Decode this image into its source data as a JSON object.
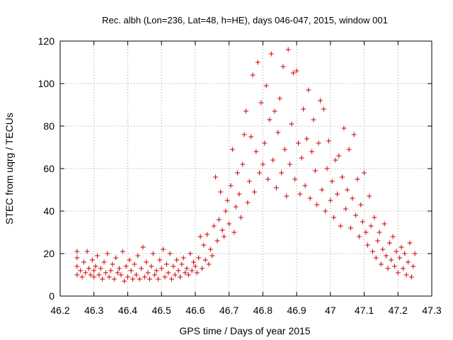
{
  "chart_data": {
    "type": "scatter",
    "title": "Rec. albh (Lon=236, Lat=48, h=HE), days 046-047, 2015, window 001",
    "xlabel": "GPS time / Days of year 2015",
    "ylabel": "STEC from uqrg / TECUs",
    "xlim": [
      46.2,
      47.3
    ],
    "ylim": [
      0,
      120
    ],
    "x_ticks": [
      "46.2",
      "46.3",
      "46.4",
      "46.5",
      "46.6",
      "46.7",
      "46.8",
      "46.9",
      "47",
      "47.1",
      "47.2",
      "47.3"
    ],
    "y_ticks": [
      "0",
      "20",
      "40",
      "60",
      "80",
      "100",
      "120"
    ],
    "grid": true,
    "marker": "plus",
    "color": "#cc0000",
    "points": [
      [
        46.25,
        10
      ],
      [
        46.25,
        14
      ],
      [
        46.25,
        18
      ],
      [
        46.25,
        21
      ],
      [
        46.26,
        12
      ],
      [
        46.265,
        9
      ],
      [
        46.27,
        16
      ],
      [
        46.275,
        11
      ],
      [
        46.28,
        21
      ],
      [
        46.285,
        13
      ],
      [
        46.29,
        10
      ],
      [
        46.295,
        17
      ],
      [
        46.3,
        12
      ],
      [
        46.3,
        9
      ],
      [
        46.305,
        14
      ],
      [
        46.31,
        19
      ],
      [
        46.315,
        10
      ],
      [
        46.32,
        13
      ],
      [
        46.325,
        8
      ],
      [
        46.33,
        16
      ],
      [
        46.335,
        11
      ],
      [
        46.34,
        20
      ],
      [
        46.345,
        9
      ],
      [
        46.35,
        12
      ],
      [
        46.355,
        15
      ],
      [
        46.36,
        8
      ],
      [
        46.365,
        18
      ],
      [
        46.37,
        11
      ],
      [
        46.375,
        13
      ],
      [
        46.38,
        10
      ],
      [
        46.385,
        21
      ],
      [
        46.39,
        7
      ],
      [
        46.395,
        14
      ],
      [
        46.4,
        9
      ],
      [
        46.405,
        17
      ],
      [
        46.41,
        12
      ],
      [
        46.415,
        8
      ],
      [
        46.42,
        15
      ],
      [
        46.425,
        10
      ],
      [
        46.43,
        19
      ],
      [
        46.435,
        8
      ],
      [
        46.44,
        13
      ],
      [
        46.445,
        23
      ],
      [
        46.45,
        9
      ],
      [
        46.455,
        16
      ],
      [
        46.46,
        11
      ],
      [
        46.465,
        8
      ],
      [
        46.47,
        14
      ],
      [
        46.475,
        20
      ],
      [
        46.48,
        10
      ],
      [
        46.485,
        12
      ],
      [
        46.49,
        8
      ],
      [
        46.495,
        17
      ],
      [
        46.5,
        13
      ],
      [
        46.505,
        22
      ],
      [
        46.51,
        9
      ],
      [
        46.515,
        15
      ],
      [
        46.52,
        11
      ],
      [
        46.525,
        20
      ],
      [
        46.53,
        8
      ],
      [
        46.535,
        14
      ],
      [
        46.54,
        10
      ],
      [
        46.545,
        17
      ],
      [
        46.55,
        12
      ],
      [
        46.555,
        9
      ],
      [
        46.56,
        15
      ],
      [
        46.565,
        18
      ],
      [
        46.57,
        11
      ],
      [
        46.575,
        13
      ],
      [
        46.58,
        10
      ],
      [
        46.585,
        20
      ],
      [
        46.59,
        12
      ],
      [
        46.595,
        16
      ],
      [
        46.6,
        14
      ],
      [
        46.605,
        11
      ],
      [
        46.61,
        18
      ],
      [
        46.615,
        28
      ],
      [
        46.62,
        13
      ],
      [
        46.625,
        24
      ],
      [
        46.63,
        17
      ],
      [
        46.635,
        29
      ],
      [
        46.64,
        15
      ],
      [
        46.645,
        22
      ],
      [
        46.65,
        19
      ],
      [
        46.655,
        33
      ],
      [
        46.66,
        56
      ],
      [
        46.665,
        26
      ],
      [
        46.67,
        36
      ],
      [
        46.675,
        49
      ],
      [
        46.68,
        31
      ],
      [
        46.685,
        28
      ],
      [
        46.69,
        40
      ],
      [
        46.695,
        45
      ],
      [
        46.7,
        34
      ],
      [
        46.705,
        52
      ],
      [
        46.71,
        69
      ],
      [
        46.715,
        30
      ],
      [
        46.72,
        42
      ],
      [
        46.725,
        58
      ],
      [
        46.73,
        48
      ],
      [
        46.735,
        37
      ],
      [
        46.74,
        62
      ],
      [
        46.745,
        76
      ],
      [
        46.75,
        87
      ],
      [
        46.755,
        44
      ],
      [
        46.76,
        54
      ],
      [
        46.765,
        75
      ],
      [
        46.77,
        104
      ],
      [
        46.775,
        49
      ],
      [
        46.78,
        68
      ],
      [
        46.785,
        110
      ],
      [
        46.79,
        58
      ],
      [
        46.795,
        91
      ],
      [
        46.8,
        62
      ],
      [
        46.805,
        72
      ],
      [
        46.81,
        99
      ],
      [
        46.815,
        55
      ],
      [
        46.82,
        83
      ],
      [
        46.825,
        114
      ],
      [
        46.83,
        64
      ],
      [
        46.835,
        87
      ],
      [
        46.84,
        51
      ],
      [
        46.845,
        77
      ],
      [
        46.85,
        93
      ],
      [
        46.855,
        58
      ],
      [
        46.86,
        108
      ],
      [
        46.865,
        69
      ],
      [
        46.87,
        47
      ],
      [
        46.875,
        116
      ],
      [
        46.88,
        62
      ],
      [
        46.885,
        81
      ],
      [
        46.89,
        105
      ],
      [
        46.895,
        55
      ],
      [
        46.9,
        106
      ],
      [
        46.905,
        72
      ],
      [
        46.91,
        48
      ],
      [
        46.915,
        65
      ],
      [
        46.92,
        88
      ],
      [
        46.925,
        52
      ],
      [
        46.93,
        74
      ],
      [
        46.935,
        97
      ],
      [
        46.94,
        46
      ],
      [
        46.945,
        68
      ],
      [
        46.95,
        83
      ],
      [
        46.955,
        59
      ],
      [
        46.96,
        43
      ],
      [
        46.965,
        72
      ],
      [
        46.97,
        92
      ],
      [
        46.975,
        50
      ],
      [
        46.98,
        88
      ],
      [
        46.985,
        40
      ],
      [
        46.99,
        60
      ],
      [
        46.995,
        73
      ],
      [
        47.0,
        45
      ],
      [
        47.005,
        54
      ],
      [
        47.01,
        37
      ],
      [
        47.015,
        64
      ],
      [
        47.02,
        48
      ],
      [
        47.025,
        66
      ],
      [
        47.03,
        33
      ],
      [
        47.035,
        56
      ],
      [
        47.04,
        79
      ],
      [
        47.045,
        41
      ],
      [
        47.05,
        50
      ],
      [
        47.055,
        69
      ],
      [
        47.06,
        32
      ],
      [
        47.065,
        46
      ],
      [
        47.07,
        76
      ],
      [
        47.075,
        38
      ],
      [
        47.08,
        55
      ],
      [
        47.085,
        28
      ],
      [
        47.09,
        43
      ],
      [
        47.095,
        35
      ],
      [
        47.1,
        58
      ],
      [
        47.105,
        30
      ],
      [
        47.11,
        24
      ],
      [
        47.115,
        47
      ],
      [
        47.12,
        33
      ],
      [
        47.125,
        21
      ],
      [
        47.13,
        37
      ],
      [
        47.135,
        18
      ],
      [
        47.14,
        26
      ],
      [
        47.145,
        30
      ],
      [
        47.15,
        15
      ],
      [
        47.155,
        22
      ],
      [
        47.16,
        34
      ],
      [
        47.165,
        19
      ],
      [
        47.17,
        13
      ],
      [
        47.175,
        25
      ],
      [
        47.18,
        17
      ],
      [
        47.185,
        28
      ],
      [
        47.19,
        14
      ],
      [
        47.195,
        21
      ],
      [
        47.2,
        11
      ],
      [
        47.205,
        18
      ],
      [
        47.21,
        23
      ],
      [
        47.215,
        13
      ],
      [
        47.22,
        20
      ],
      [
        47.225,
        10
      ],
      [
        47.23,
        16
      ],
      [
        47.235,
        25
      ],
      [
        47.24,
        9
      ],
      [
        47.245,
        14
      ],
      [
        47.25,
        20
      ]
    ]
  }
}
